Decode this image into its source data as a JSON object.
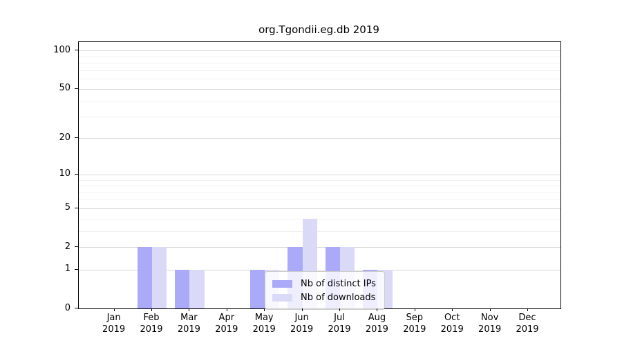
{
  "chart_data": {
    "type": "bar",
    "title": "org.Tgondii.eg.db 2019",
    "months": [
      "Jan",
      "Feb",
      "Mar",
      "Apr",
      "May",
      "Jun",
      "Jul",
      "Aug",
      "Sep",
      "Oct",
      "Nov",
      "Dec"
    ],
    "year_label": "2019",
    "series": [
      {
        "name": "Nb of distinct IPs",
        "color": "#aaaaf8",
        "values": [
          0,
          2,
          1,
          0,
          1,
          2,
          2,
          1,
          0,
          0,
          0,
          0
        ]
      },
      {
        "name": "Nb of downloads",
        "color": "#dadaf8",
        "values": [
          0,
          2,
          1,
          0,
          1,
          4,
          2,
          1,
          0,
          0,
          0,
          0
        ]
      }
    ],
    "y_scale": "log1p",
    "y_ticks": [
      0,
      1,
      2,
      5,
      10,
      20,
      50,
      100
    ],
    "y_minor_ticks": [
      3,
      4,
      6,
      7,
      8,
      9,
      30,
      40,
      60,
      70,
      80,
      90
    ],
    "ylim": [
      0,
      116
    ],
    "grid": "horizontal",
    "legend_position": "inside-bottom-center",
    "colors": {
      "frame": "#000000",
      "gridline_major": "#d8d8d8",
      "gridline_minor": "#f0f0f0",
      "legend_border": "#cccccc",
      "text": "#000000"
    }
  }
}
